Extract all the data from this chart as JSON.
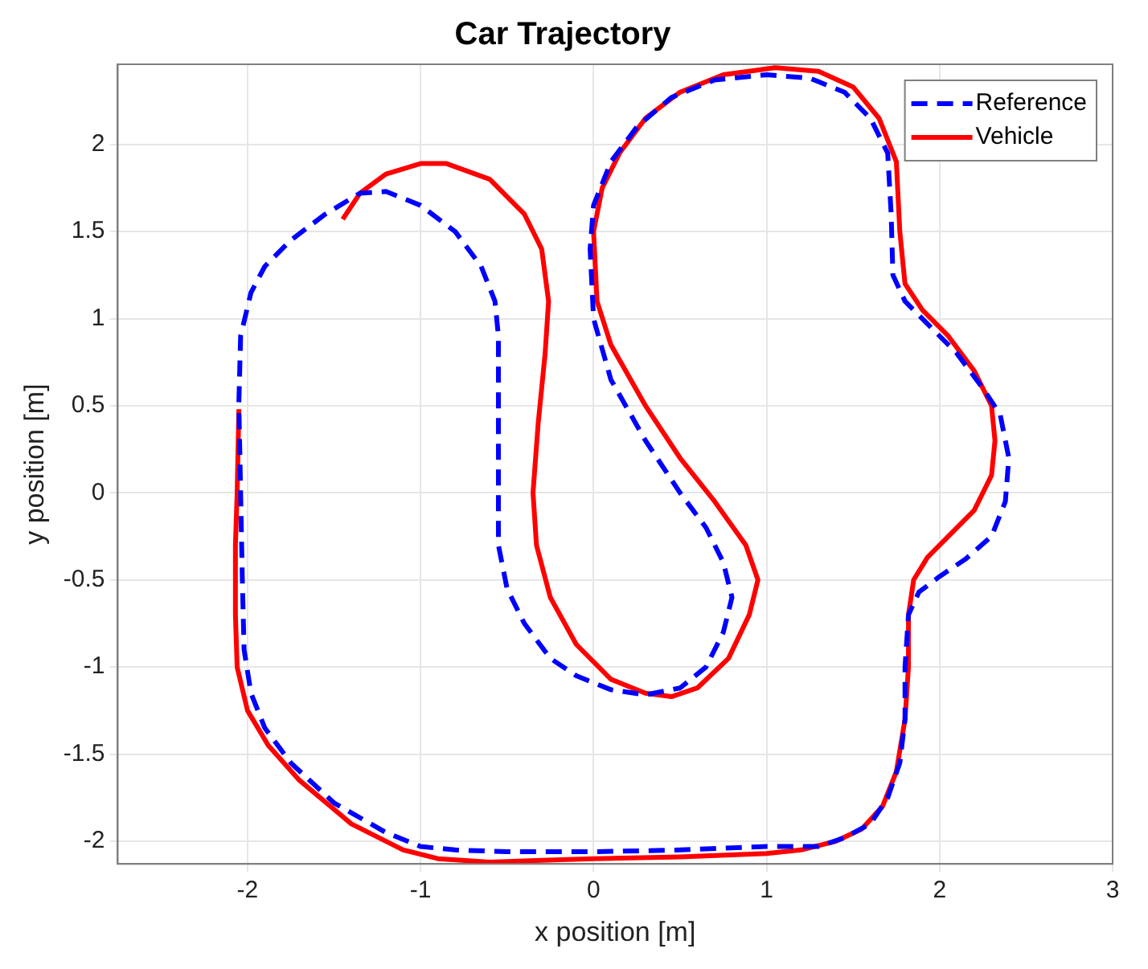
{
  "chart_data": {
    "type": "line",
    "title": "Car Trajectory",
    "xlabel": "x position [m]",
    "ylabel": "y position [m]",
    "xlim": [
      -2.75,
      3
    ],
    "ylim": [
      -2.13,
      2.46
    ],
    "xticks": [
      -2,
      -1,
      0,
      1,
      2,
      3
    ],
    "yticks": [
      -2,
      -1.5,
      -1,
      -0.5,
      0,
      0.5,
      1,
      1.5,
      2
    ],
    "grid": true,
    "legend": "top right",
    "marker": "none",
    "series": [
      {
        "name": "Reference",
        "color": "#0000ff",
        "line_style": "dashed",
        "x": [
          -2.05,
          -2.04,
          -1.98,
          -1.9,
          -1.75,
          -1.55,
          -1.35,
          -1.2,
          -1.0,
          -0.8,
          -0.65,
          -0.57,
          -0.55,
          -0.55,
          -0.55,
          -0.55,
          -0.5,
          -0.4,
          -0.25,
          -0.1,
          0.1,
          0.3,
          0.5,
          0.65,
          0.75,
          0.8,
          0.75,
          0.65,
          0.5,
          0.3,
          0.1,
          0.0,
          -0.02,
          0.0,
          0.1,
          0.25,
          0.45,
          0.7,
          1.0,
          1.25,
          1.45,
          1.6,
          1.7,
          1.72,
          1.73,
          1.8,
          1.95,
          2.1,
          2.25,
          2.35,
          2.4,
          2.38,
          2.3,
          2.15,
          2.0,
          1.88,
          1.82,
          1.8,
          1.8,
          1.77,
          1.7,
          1.6,
          1.45,
          1.3,
          1.0,
          0.5,
          0,
          -0.5,
          -0.8,
          -1.0,
          -1.2,
          -1.5,
          -1.75,
          -1.9,
          -1.98,
          -2.02,
          -2.03,
          -2.04,
          -2.05
        ],
        "values": [
          0.52,
          0.9,
          1.15,
          1.3,
          1.45,
          1.6,
          1.72,
          1.73,
          1.65,
          1.5,
          1.3,
          1.1,
          0.9,
          0.5,
          0,
          -0.3,
          -0.55,
          -0.75,
          -0.95,
          -1.05,
          -1.13,
          -1.16,
          -1.12,
          -1.0,
          -0.8,
          -0.6,
          -0.4,
          -0.2,
          0,
          0.3,
          0.65,
          1.0,
          1.4,
          1.65,
          1.9,
          2.1,
          2.27,
          2.37,
          2.4,
          2.38,
          2.3,
          2.15,
          1.95,
          1.6,
          1.25,
          1.1,
          0.95,
          0.8,
          0.6,
          0.45,
          0.2,
          -0.05,
          -0.25,
          -0.38,
          -0.48,
          -0.57,
          -0.7,
          -1.0,
          -1.3,
          -1.55,
          -1.75,
          -1.9,
          -1.98,
          -2.03,
          -2.03,
          -2.05,
          -2.06,
          -2.06,
          -2.05,
          -2.03,
          -1.95,
          -1.78,
          -1.55,
          -1.35,
          -1.15,
          -0.9,
          -0.5,
          0,
          0.5
        ]
      },
      {
        "name": "Vehicle",
        "color": "#ff0000",
        "line_style": "solid",
        "x": [
          -1.45,
          -1.35,
          -1.2,
          -1.0,
          -0.85,
          -0.6,
          -0.4,
          -0.3,
          -0.26,
          -0.28,
          -0.32,
          -0.35,
          -0.33,
          -0.25,
          -0.1,
          0.1,
          0.3,
          0.45,
          0.6,
          0.78,
          0.9,
          0.95,
          0.88,
          0.7,
          0.5,
          0.3,
          0.1,
          0.02,
          0.0,
          0.05,
          0.15,
          0.3,
          0.5,
          0.75,
          1.05,
          1.3,
          1.5,
          1.65,
          1.75,
          1.77,
          1.8,
          1.9,
          2.05,
          2.2,
          2.3,
          2.32,
          2.3,
          2.2,
          2.05,
          1.93,
          1.85,
          1.82,
          1.82,
          1.8,
          1.75,
          1.67,
          1.55,
          1.4,
          1.2,
          1.0,
          0.5,
          0,
          -0.3,
          -0.6,
          -0.9,
          -1.1,
          -1.4,
          -1.7,
          -1.88,
          -2.0,
          -2.06,
          -2.07,
          -2.07,
          -2.06,
          -2.05
        ],
        "values": [
          1.57,
          1.72,
          1.83,
          1.89,
          1.89,
          1.8,
          1.6,
          1.4,
          1.1,
          0.8,
          0.4,
          0,
          -0.3,
          -0.6,
          -0.87,
          -1.07,
          -1.15,
          -1.17,
          -1.12,
          -0.95,
          -0.7,
          -0.5,
          -0.3,
          -0.05,
          0.2,
          0.5,
          0.85,
          1.1,
          1.5,
          1.75,
          1.95,
          2.15,
          2.3,
          2.4,
          2.44,
          2.42,
          2.33,
          2.15,
          1.9,
          1.5,
          1.2,
          1.05,
          0.9,
          0.7,
          0.5,
          0.3,
          0.1,
          -0.1,
          -0.25,
          -0.37,
          -0.5,
          -0.7,
          -1.0,
          -1.3,
          -1.6,
          -1.8,
          -1.93,
          -2.0,
          -2.05,
          -2.07,
          -2.09,
          -2.1,
          -2.11,
          -2.12,
          -2.1,
          -2.05,
          -1.9,
          -1.65,
          -1.45,
          -1.25,
          -1.0,
          -0.7,
          -0.3,
          0,
          0.48
        ]
      }
    ]
  }
}
